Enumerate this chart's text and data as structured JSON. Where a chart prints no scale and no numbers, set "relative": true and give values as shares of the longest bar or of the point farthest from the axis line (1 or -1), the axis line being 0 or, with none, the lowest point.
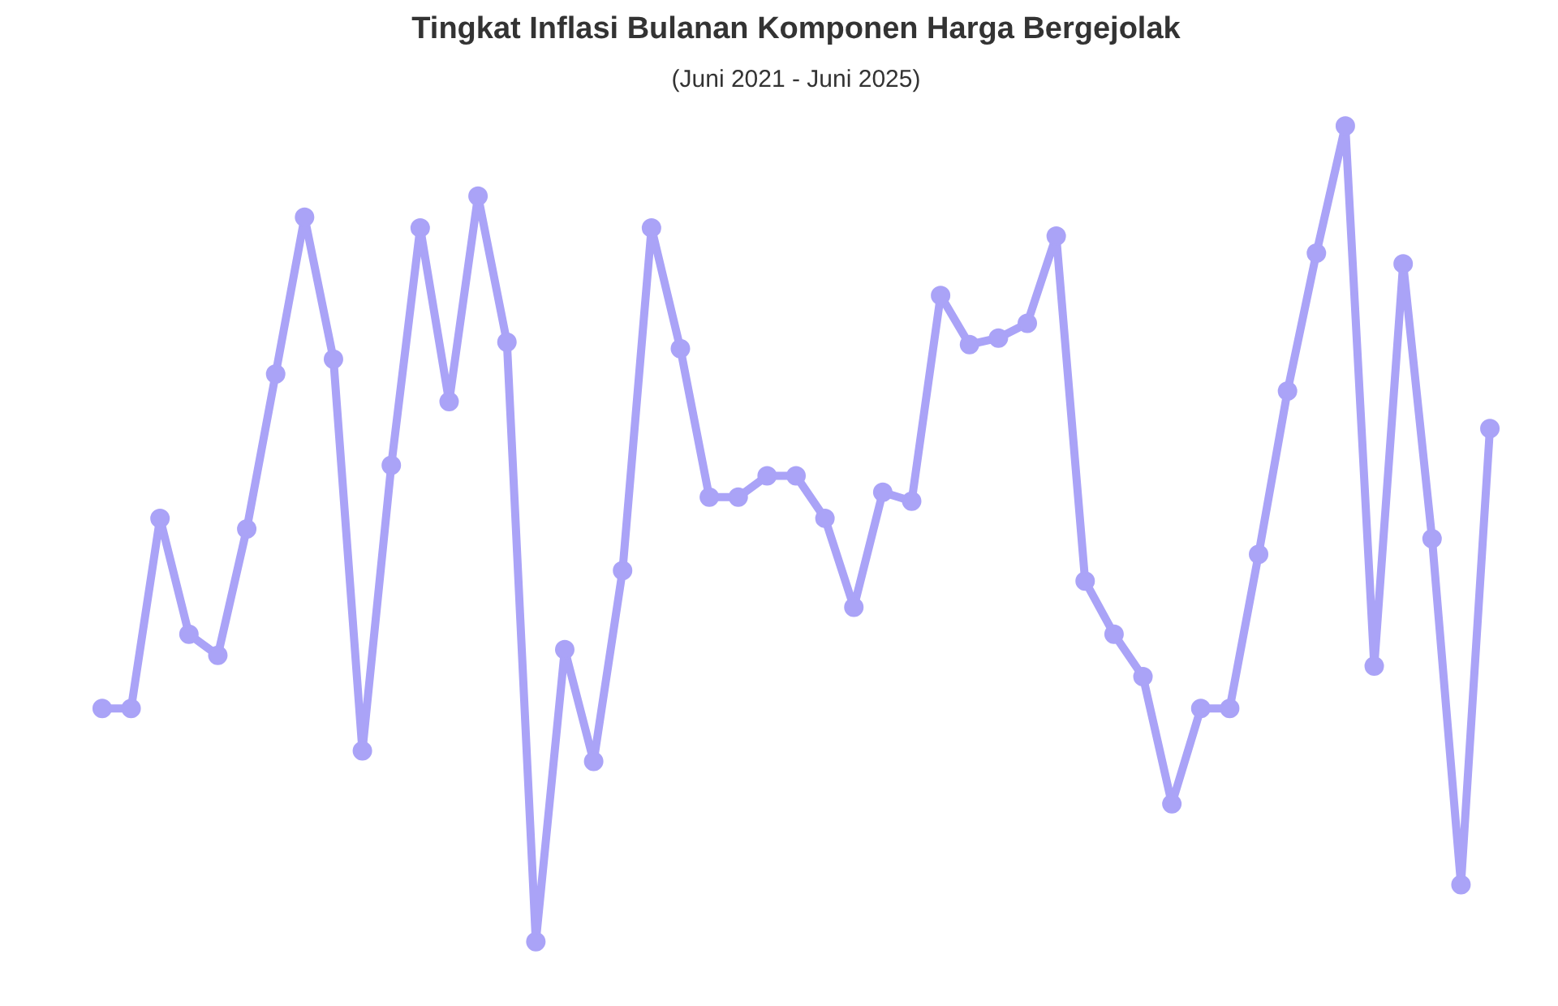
{
  "chart_data": {
    "type": "line",
    "title": "Tingkat Inflasi Bulanan Komponen Harga Bergejolak",
    "subtitle": "(Juni 2021 - Juni 2025)",
    "relative": true,
    "tick_labels": false,
    "grid": false,
    "marker": "circle",
    "line_style": "solid",
    "categories": [
      null,
      null,
      null,
      null,
      null,
      null,
      null,
      null,
      null,
      null,
      null,
      null,
      null,
      null,
      null,
      null,
      null,
      null,
      null,
      null,
      null,
      null,
      null,
      null,
      null,
      null,
      null,
      null,
      null,
      null,
      null,
      null,
      null,
      null,
      null,
      null,
      null,
      null,
      null,
      null,
      null,
      null,
      null,
      null,
      null,
      null,
      null,
      null,
      null
    ],
    "series": [
      {
        "color": "#aaa3f7",
        "values": [
          0.286,
          0.286,
          0.519,
          0.377,
          0.351,
          0.506,
          0.696,
          0.888,
          0.714,
          0.234,
          0.584,
          0.875,
          0.662,
          0.914,
          0.735,
          0.0,
          0.358,
          0.221,
          0.455,
          0.875,
          0.727,
          0.545,
          0.545,
          0.571,
          0.571,
          0.519,
          0.41,
          0.551,
          0.54,
          0.792,
          0.732,
          0.74,
          0.758,
          0.865,
          0.442,
          0.377,
          0.325,
          0.169,
          0.286,
          0.286,
          0.475,
          0.675,
          0.844,
          1.0,
          0.338,
          0.831,
          0.494,
          0.07,
          0.629
        ]
      }
    ]
  }
}
